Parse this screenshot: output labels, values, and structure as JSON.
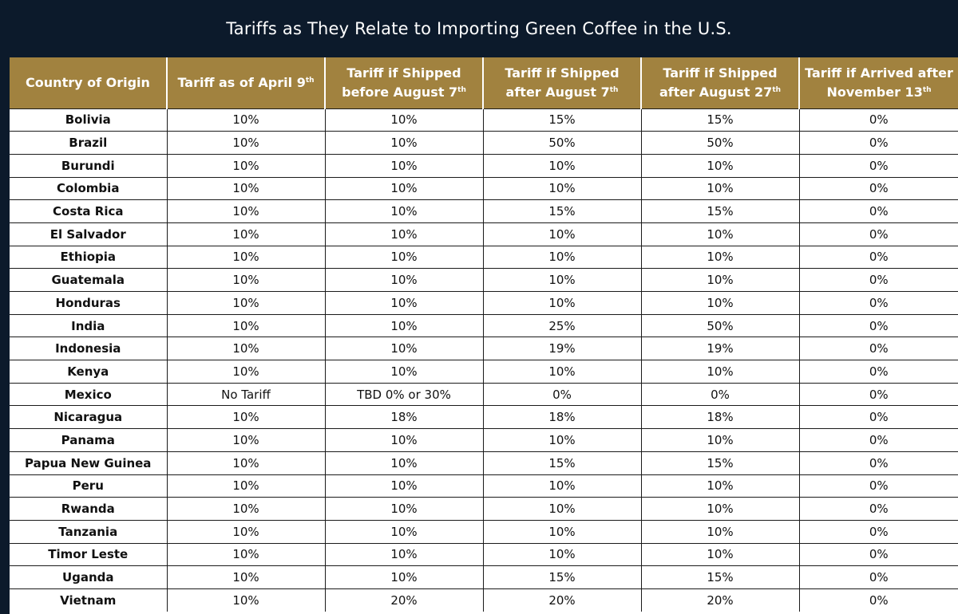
{
  "title": "Tariffs as They Relate to Importing Green Coffee in the U.S.",
  "colors": {
    "background": "#0c1a2b",
    "header": "#a1823f",
    "gridline": "#1a1a1a"
  },
  "chart_data": {
    "type": "table",
    "title": "Tariffs as They Relate to Importing Green Coffee in the U.S.",
    "columns": [
      {
        "text": "Country of Origin",
        "sup": ""
      },
      {
        "text": "Tariff as of April 9",
        "sup": "th"
      },
      {
        "text": "Tariff if Shipped before August 7",
        "sup": "th"
      },
      {
        "text": "Tariff if Shipped after August 7",
        "sup": "th"
      },
      {
        "text": "Tariff if Shipped after August 27",
        "sup": "th"
      },
      {
        "text": "Tariff if Arrived after November 13",
        "sup": "th"
      }
    ],
    "rows": [
      [
        "Bolivia",
        "10%",
        "10%",
        "15%",
        "15%",
        "0%"
      ],
      [
        "Brazil",
        "10%",
        "10%",
        "50%",
        "50%",
        "0%"
      ],
      [
        "Burundi",
        "10%",
        "10%",
        "10%",
        "10%",
        "0%"
      ],
      [
        "Colombia",
        "10%",
        "10%",
        "10%",
        "10%",
        "0%"
      ],
      [
        "Costa Rica",
        "10%",
        "10%",
        "15%",
        "15%",
        "0%"
      ],
      [
        "El Salvador",
        "10%",
        "10%",
        "10%",
        "10%",
        "0%"
      ],
      [
        "Ethiopia",
        "10%",
        "10%",
        "10%",
        "10%",
        "0%"
      ],
      [
        "Guatemala",
        "10%",
        "10%",
        "10%",
        "10%",
        "0%"
      ],
      [
        "Honduras",
        "10%",
        "10%",
        "10%",
        "10%",
        "0%"
      ],
      [
        "India",
        "10%",
        "10%",
        "25%",
        "50%",
        "0%"
      ],
      [
        "Indonesia",
        "10%",
        "10%",
        "19%",
        "19%",
        "0%"
      ],
      [
        "Kenya",
        "10%",
        "10%",
        "10%",
        "10%",
        "0%"
      ],
      [
        "Mexico",
        "No Tariff",
        "TBD 0% or 30%",
        "0%",
        "0%",
        "0%"
      ],
      [
        "Nicaragua",
        "10%",
        "18%",
        "18%",
        "18%",
        "0%"
      ],
      [
        "Panama",
        "10%",
        "10%",
        "10%",
        "10%",
        "0%"
      ],
      [
        "Papua New Guinea",
        "10%",
        "10%",
        "15%",
        "15%",
        "0%"
      ],
      [
        "Peru",
        "10%",
        "10%",
        "10%",
        "10%",
        "0%"
      ],
      [
        "Rwanda",
        "10%",
        "10%",
        "10%",
        "10%",
        "0%"
      ],
      [
        "Tanzania",
        "10%",
        "10%",
        "10%",
        "10%",
        "0%"
      ],
      [
        "Timor Leste",
        "10%",
        "10%",
        "10%",
        "10%",
        "0%"
      ],
      [
        "Uganda",
        "10%",
        "10%",
        "15%",
        "15%",
        "0%"
      ],
      [
        "Vietnam",
        "10%",
        "20%",
        "20%",
        "20%",
        "0%"
      ]
    ]
  }
}
